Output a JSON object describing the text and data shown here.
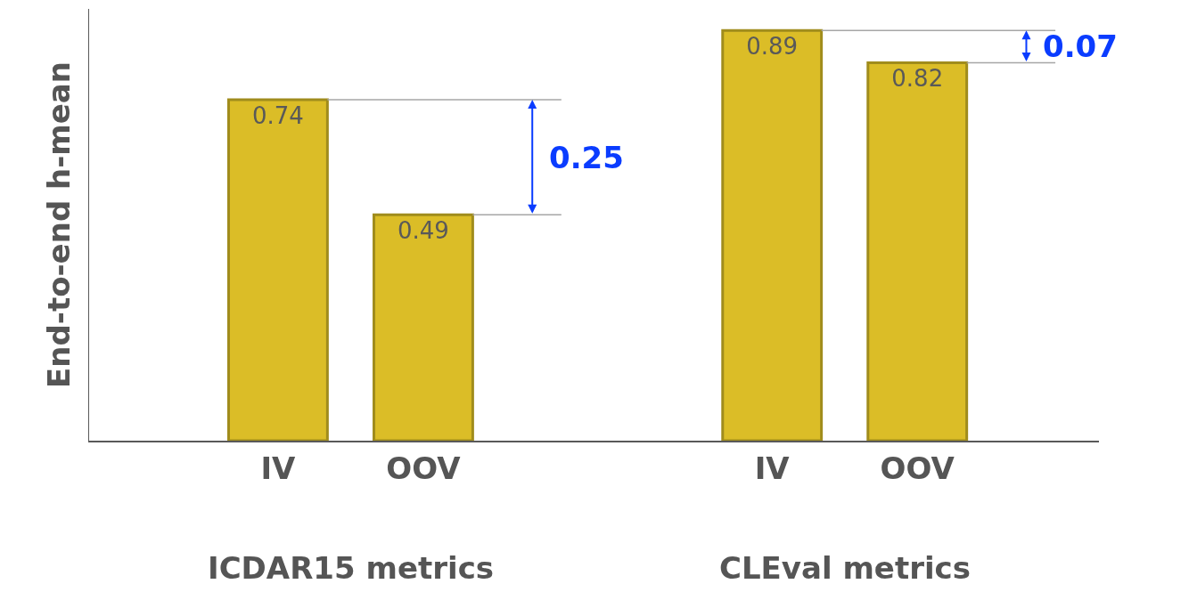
{
  "chart_data": {
    "type": "bar",
    "ylabel": "End-to-end h-mean",
    "categories": [
      "IV",
      "OOV",
      "IV",
      "OOV"
    ],
    "values": [
      0.74,
      0.49,
      0.89,
      0.82
    ],
    "color": "#dbbd27",
    "data_labels": true,
    "tick_labels": "x",
    "grid": false,
    "annotations": [
      "ICDAR15 metrics",
      "CLEval metrics",
      "0.25",
      "0.07"
    ]
  }
}
